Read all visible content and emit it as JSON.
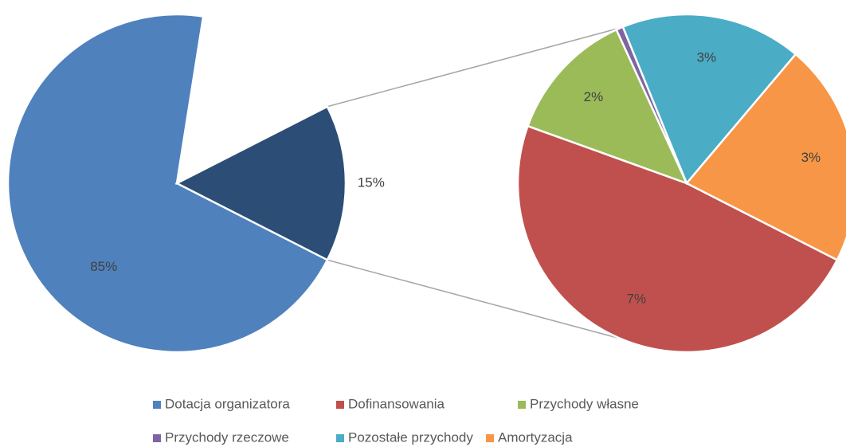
{
  "chart_data": {
    "type": "pie_of_pie",
    "categories": [
      "Dotacja organizatora",
      "Dofinansowania",
      "Przychody własne",
      "Przychody rzeczowe",
      "Pozostałe przychody",
      "Amortyzacja"
    ],
    "values": [
      85,
      7.2,
      1.9,
      0.1,
      2.6,
      3.2
    ],
    "value_labels": [
      "85%",
      "7%",
      "2%",
      null,
      "3%",
      "3%"
    ],
    "colors": [
      "#4f81bd",
      "#c0504d",
      "#9bbb59",
      "#8064a2",
      "#4bacc6",
      "#f79646"
    ],
    "other": {
      "value": 15,
      "label": "15%",
      "color": "#2c4d75"
    },
    "legend": "bottom"
  }
}
